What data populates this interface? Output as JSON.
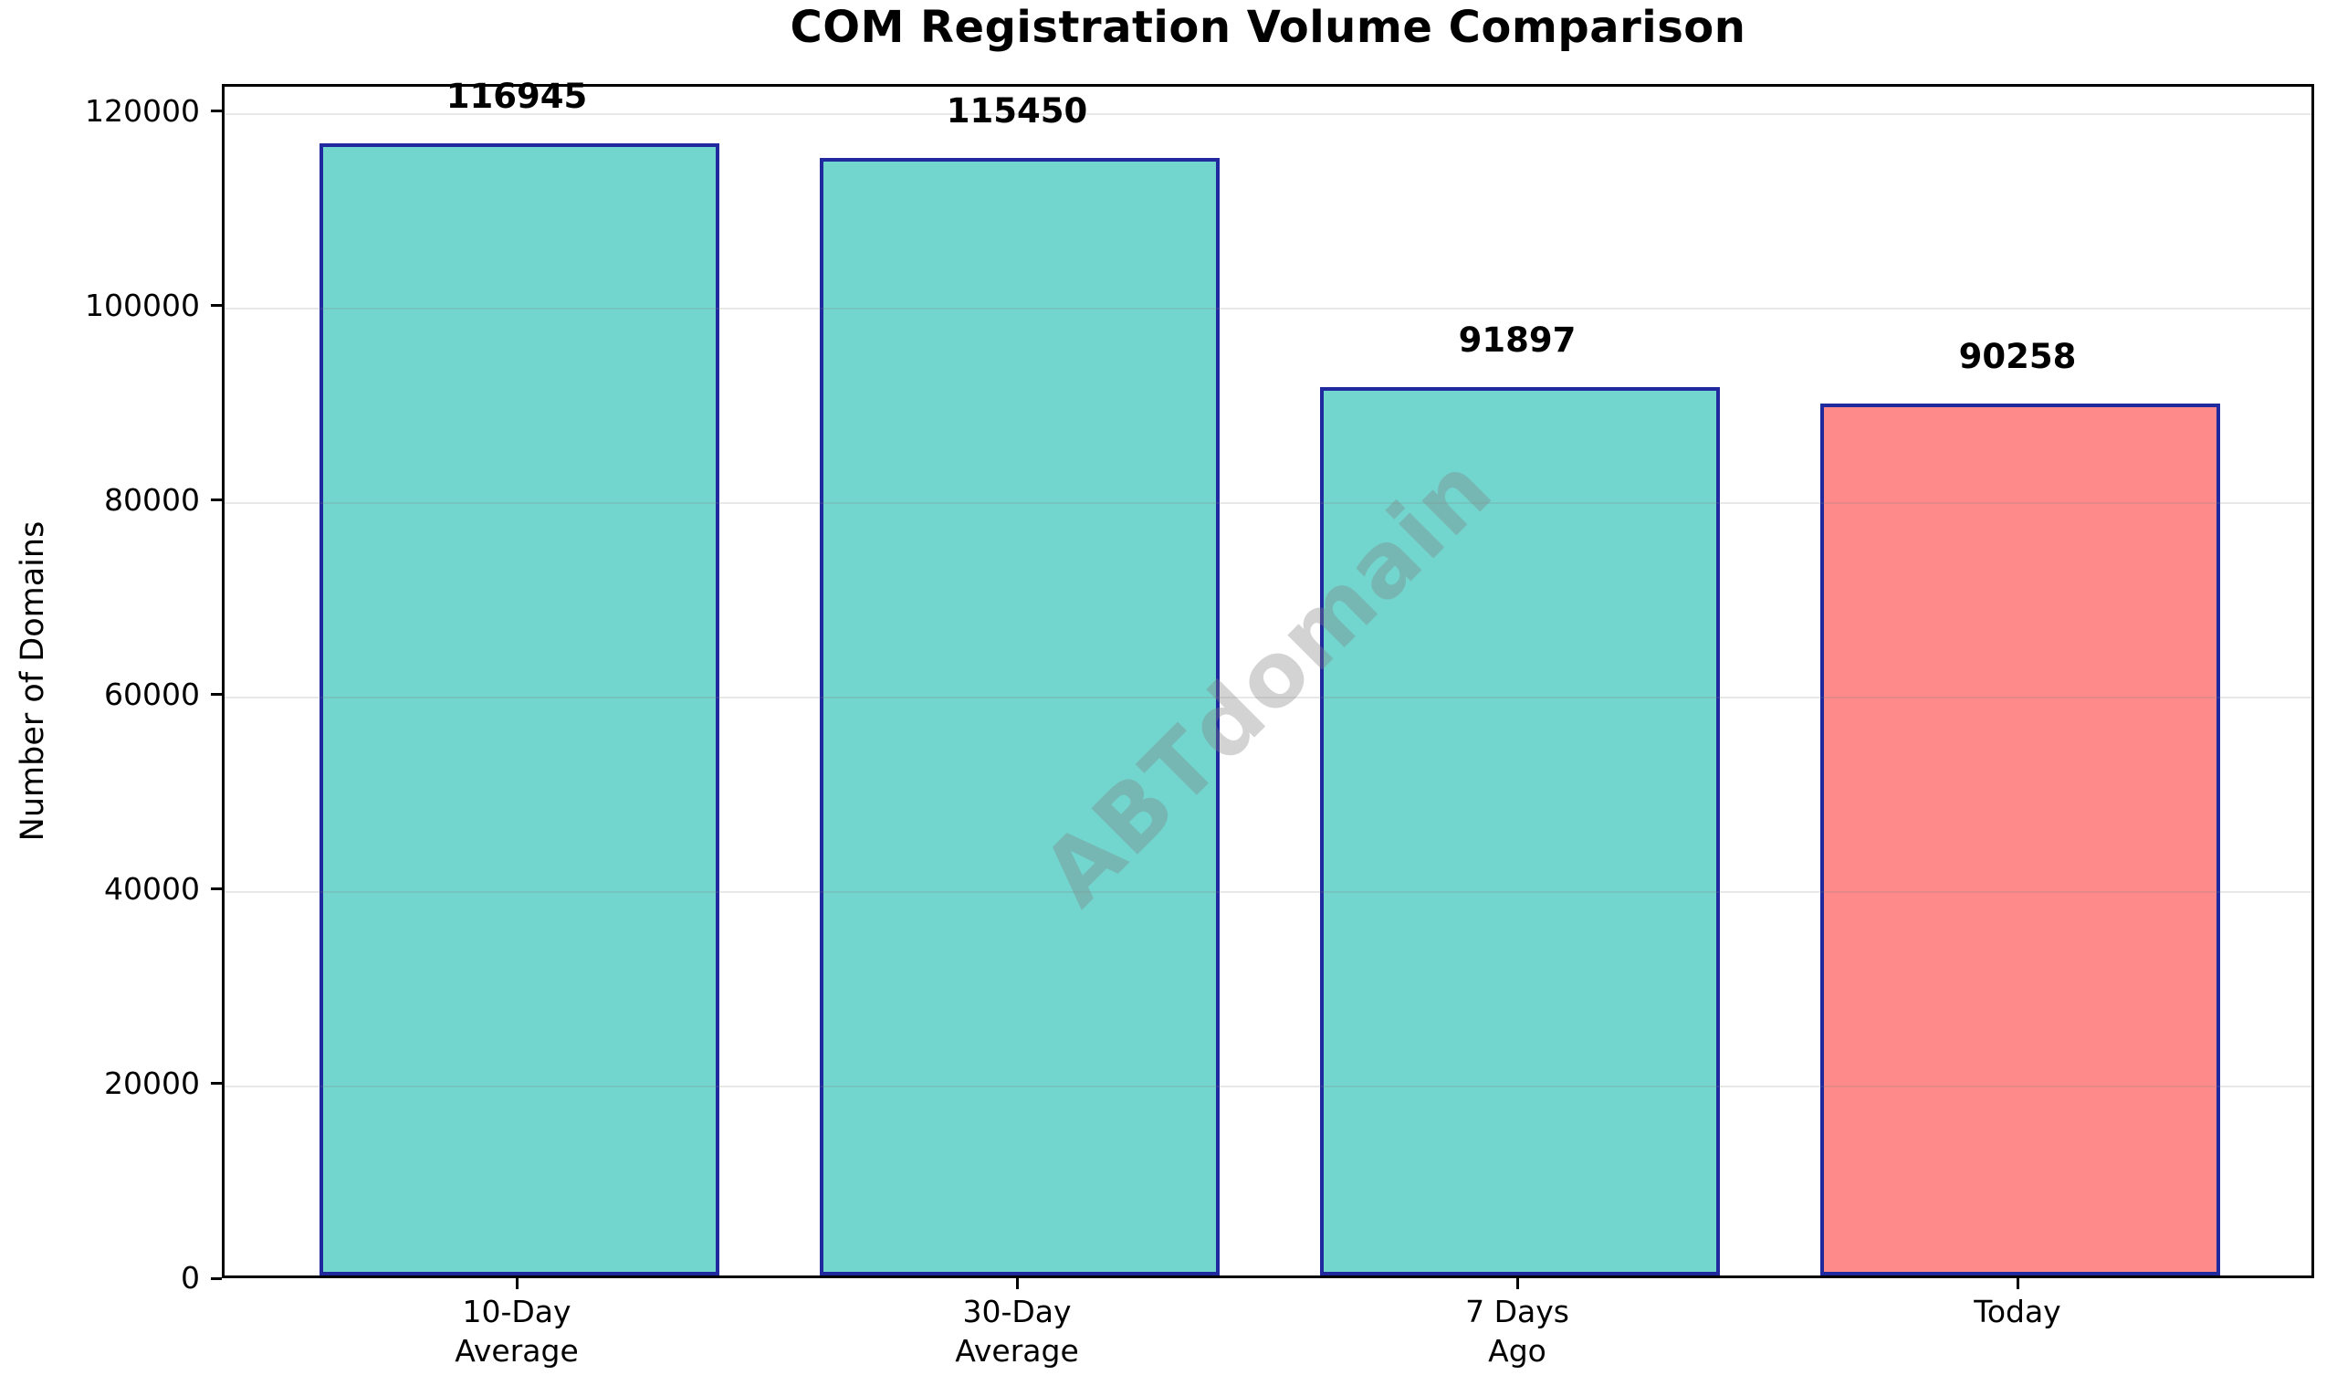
{
  "chart_data": {
    "type": "bar",
    "title": "COM Registration Volume Comparison",
    "ylabel": "Number of Domains",
    "xlabel": "",
    "categories": [
      "10-Day\nAverage",
      "30-Day\nAverage",
      "7 Days\nAgo",
      "Today"
    ],
    "values": [
      116945,
      115450,
      91897,
      90258
    ],
    "yticks": [
      0,
      20000,
      40000,
      60000,
      80000,
      100000,
      120000
    ],
    "ylim": [
      0,
      122800
    ],
    "grid": true,
    "grid_position": "above-bars",
    "legend": "none",
    "watermark": "ABTdomain",
    "colors": {
      "bar_fill": [
        "#72D5CE",
        "#72D5CE",
        "#72D5CE",
        "#FE8A8A"
      ],
      "bar_edge": "#202A9E",
      "gridline": "rgba(130,130,130,0.18)",
      "watermark": "rgba(128,128,128,0.35)",
      "text": "#000000"
    }
  }
}
